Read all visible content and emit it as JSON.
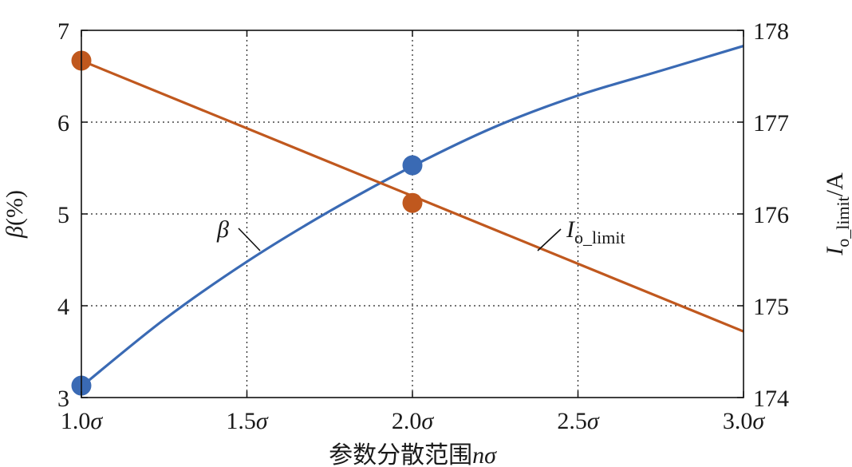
{
  "chart_data": {
    "type": "line",
    "x_tick_labels": [
      "1.0σ",
      "1.5σ",
      "2.0σ",
      "2.5σ",
      "3.0σ"
    ],
    "x_ticks": [
      1.0,
      1.5,
      2.0,
      2.5,
      3.0
    ],
    "xlim": [
      1.0,
      3.0
    ],
    "xlabel": {
      "prefix": "参数分散范围",
      "italic": "nσ"
    },
    "y_left": {
      "label": "β(%)",
      "ticks": [
        3,
        4,
        5,
        6,
        7
      ],
      "ylim": [
        3,
        7
      ]
    },
    "y_right": {
      "label": "Io_limit/A",
      "ticks": [
        174,
        175,
        176,
        177,
        178
      ],
      "ylim": [
        174,
        178
      ]
    },
    "grid": true,
    "series": [
      {
        "name": "β",
        "axis": "left",
        "color": "#3a6ab4",
        "x": [
          1.0,
          1.25,
          1.5,
          1.75,
          2.0,
          2.25,
          2.5,
          2.75,
          3.0
        ],
        "values": [
          3.12,
          3.85,
          4.48,
          5.03,
          5.52,
          5.95,
          6.29,
          6.56,
          6.83
        ],
        "markers": [
          {
            "x": 1.0,
            "y": 3.13
          },
          {
            "x": 2.0,
            "y": 5.53
          }
        ]
      },
      {
        "name": "Io_limit",
        "axis": "right",
        "color": "#c0581e",
        "x": [
          1.0,
          3.0
        ],
        "values": [
          177.67,
          174.72
        ],
        "markers": [
          {
            "x": 1.0,
            "y": 177.67
          },
          {
            "x": 2.0,
            "y": 176.12
          }
        ]
      }
    ],
    "annotations": [
      {
        "series": "β",
        "text": "β"
      },
      {
        "series": "Io_limit",
        "text_main": "I",
        "text_sub": "o_limit"
      }
    ]
  }
}
